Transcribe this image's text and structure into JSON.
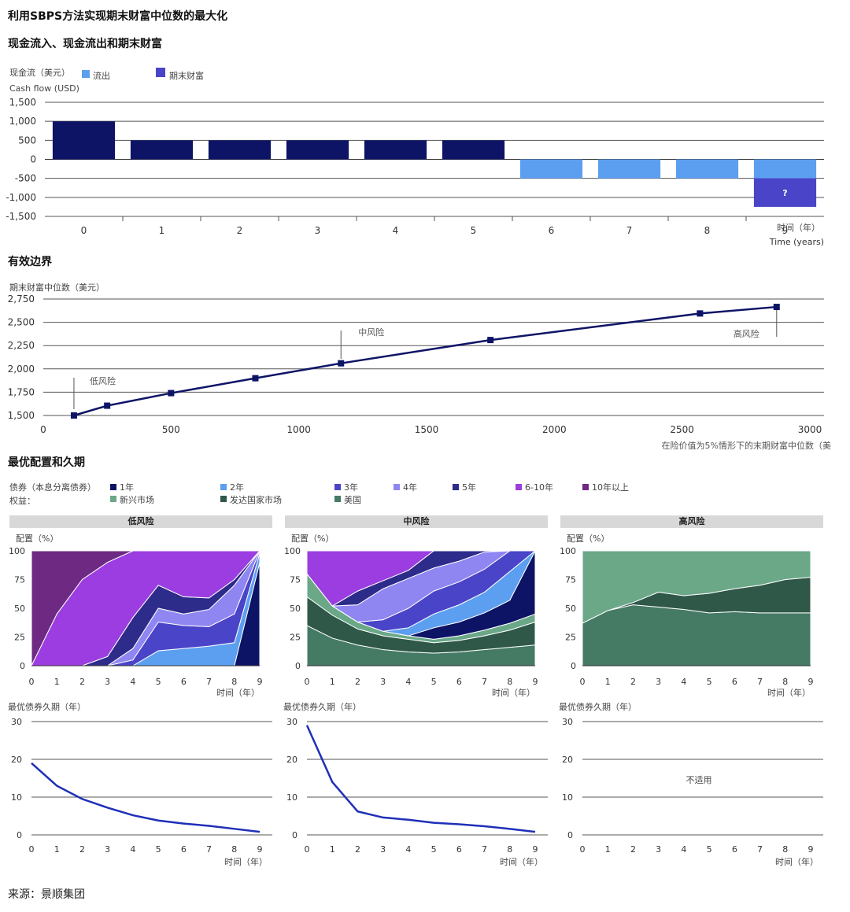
{
  "page": {
    "title": "利用SBPS方法实现期末财富中位数的最大化",
    "source": "来源：景顺集团"
  },
  "chart_data": [
    {
      "type": "bar",
      "subtitle": "现金流入、现金流出和期末财富",
      "ylabel_cn": "现金流（美元）",
      "ylabel_en": "Cash flow (USD)",
      "xlabel_cn": "时间（年）",
      "xlabel_en": "Time (years)",
      "legend": [
        "流出",
        "期末财富"
      ],
      "ylim": [
        -1500,
        1500
      ],
      "yticks": [
        1500,
        1000,
        500,
        0,
        -500,
        -1000,
        -1500
      ],
      "ytick_labels": [
        "1,500",
        "1,000",
        "500",
        "0",
        "-500",
        "-1,000",
        "-1,500"
      ],
      "categories": [
        "0",
        "1",
        "2",
        "3",
        "4",
        "5",
        "6",
        "7",
        "8",
        "9"
      ],
      "values": [
        1000,
        500,
        500,
        500,
        500,
        500,
        -500,
        -500,
        -500,
        -500
      ],
      "final_wealth": {
        "category": "9",
        "from": -500,
        "to": -1250,
        "label": "?"
      },
      "colors": {
        "inflow": "#0d1466",
        "outflow": "#5c9ff0",
        "final": "#4a44c8"
      }
    },
    {
      "type": "line",
      "subtitle": "有效边界",
      "ylabel": "期末财富中位数（美元）",
      "xlabel": "在险价值为5%情形下的末期财富中位数（美",
      "xlim": [
        0,
        3000
      ],
      "ylim": [
        1500,
        2750
      ],
      "xticks": [
        0,
        500,
        1000,
        1500,
        2000,
        2500,
        3000
      ],
      "yticks": [
        1500,
        1750,
        2000,
        2250,
        2500,
        2750
      ],
      "ytick_labels": [
        "1,500",
        "1,750",
        "2,000",
        "2,250",
        "2,500",
        "2,750"
      ],
      "x": [
        120,
        250,
        500,
        830,
        1165,
        1750,
        2570,
        2870
      ],
      "y": [
        1500,
        1605,
        1740,
        1900,
        2060,
        2310,
        2595,
        2665
      ],
      "annotations": [
        {
          "label": "低风险",
          "x": 120
        },
        {
          "label": "中风险",
          "x": 1165
        },
        {
          "label": "高风险",
          "x": 2870
        }
      ],
      "color": "#0d1466"
    },
    {
      "type": "area",
      "subtitle": "最优配置和久期",
      "legend_bonds_label": "债券（本息分离债券）",
      "legend_equity_label": "权益：",
      "bond_series": [
        {
          "name": "1年",
          "color": "#0d1466"
        },
        {
          "name": "2年",
          "color": "#5c9ff0"
        },
        {
          "name": "3年",
          "color": "#4a44c8"
        },
        {
          "name": "4年",
          "color": "#8f86f2"
        },
        {
          "name": "5年",
          "color": "#2d2c8a"
        },
        {
          "name": "6-10年",
          "color": "#9b3de0"
        },
        {
          "name": "10年以上",
          "color": "#6e2a82"
        }
      ],
      "equity_series": [
        {
          "name": "新兴市场",
          "color": "#6aa888"
        },
        {
          "name": "发达国家市场",
          "color": "#2f5848"
        },
        {
          "name": "美国",
          "color": "#457a64"
        }
      ],
      "alloc_ylabel": "配置（%）",
      "xlabel": "时间（年）",
      "duration_ylabel": "最优债券久期（年）",
      "x": [
        0,
        1,
        2,
        3,
        4,
        5,
        6,
        7,
        8,
        9
      ],
      "alloc_yticks": [
        0,
        25,
        50,
        75,
        100
      ],
      "duration_yticks": [
        0,
        10,
        20,
        30
      ],
      "panels": [
        {
          "name": "低风险",
          "stacks": [
            {
              "color": "#0d1466",
              "values": [
                0,
                0,
                0,
                0,
                0,
                0,
                0,
                0,
                0,
                90
              ]
            },
            {
              "color": "#5c9ff0",
              "values": [
                0,
                0,
                0,
                0,
                0,
                13,
                15,
                17,
                20,
                8
              ]
            },
            {
              "color": "#4a44c8",
              "values": [
                0,
                0,
                0,
                0,
                5,
                25,
                20,
                17,
                25,
                2
              ]
            },
            {
              "color": "#8f86f2",
              "values": [
                0,
                0,
                0,
                0,
                10,
                12,
                10,
                15,
                25,
                0
              ]
            },
            {
              "color": "#2d2c8a",
              "values": [
                0,
                0,
                0,
                8,
                27,
                20,
                15,
                10,
                5,
                0
              ]
            },
            {
              "color": "#9b3de0",
              "values": [
                0,
                45,
                75,
                82,
                58,
                30,
                40,
                41,
                25,
                0
              ]
            },
            {
              "color": "#6e2a82",
              "values": [
                100,
                55,
                25,
                10,
                0,
                0,
                0,
                0,
                0,
                0
              ]
            }
          ],
          "duration": [
            19,
            13,
            9.5,
            7.2,
            5.2,
            3.8,
            3,
            2.4,
            1.6,
            0.8
          ],
          "duration_note": ""
        },
        {
          "name": "中风险",
          "stacks": [
            {
              "color": "#457a64",
              "values": [
                35,
                24,
                18,
                14,
                12,
                11,
                12,
                14,
                16,
                18
              ]
            },
            {
              "color": "#2f5848",
              "values": [
                25,
                20,
                14,
                12,
                11,
                9,
                10,
                12,
                15,
                20
              ]
            },
            {
              "color": "#6aa888",
              "values": [
                20,
                8,
                6,
                4,
                3,
                3,
                4,
                5,
                6,
                7
              ]
            },
            {
              "color": "#0d1466",
              "values": [
                0,
                0,
                0,
                0,
                0,
                10,
                12,
                15,
                20,
                55
              ]
            },
            {
              "color": "#5c9ff0",
              "values": [
                0,
                0,
                0,
                0,
                7,
                12,
                15,
                18,
                25,
                0
              ]
            },
            {
              "color": "#4a44c8",
              "values": [
                0,
                0,
                0,
                10,
                17,
                20,
                20,
                20,
                18,
                0
              ]
            },
            {
              "color": "#8f86f2",
              "values": [
                0,
                0,
                15,
                27,
                26,
                20,
                18,
                15,
                0,
                0
              ]
            },
            {
              "color": "#2d2c8a",
              "values": [
                0,
                0,
                12,
                7,
                7,
                15,
                9,
                1,
                0,
                0
              ]
            },
            {
              "color": "#9b3de0",
              "values": [
                20,
                48,
                35,
                26,
                17,
                0,
                0,
                0,
                0,
                0
              ]
            }
          ],
          "duration": [
            29,
            14,
            6.2,
            4.6,
            4,
            3.2,
            2.8,
            2.3,
            1.6,
            0.8
          ],
          "duration_note": ""
        },
        {
          "name": "高风险",
          "stacks": [
            {
              "color": "#457a64",
              "values": [
                37,
                48,
                53,
                51,
                49,
                46,
                47,
                46,
                46,
                46
              ]
            },
            {
              "color": "#2f5848",
              "values": [
                0,
                0,
                2,
                13,
                12,
                17,
                20,
                24,
                29,
                31
              ]
            },
            {
              "color": "#6aa888",
              "values": [
                63,
                52,
                45,
                36,
                39,
                37,
                33,
                30,
                25,
                23
              ]
            }
          ],
          "duration": [],
          "duration_note": "不适用"
        }
      ]
    }
  ]
}
